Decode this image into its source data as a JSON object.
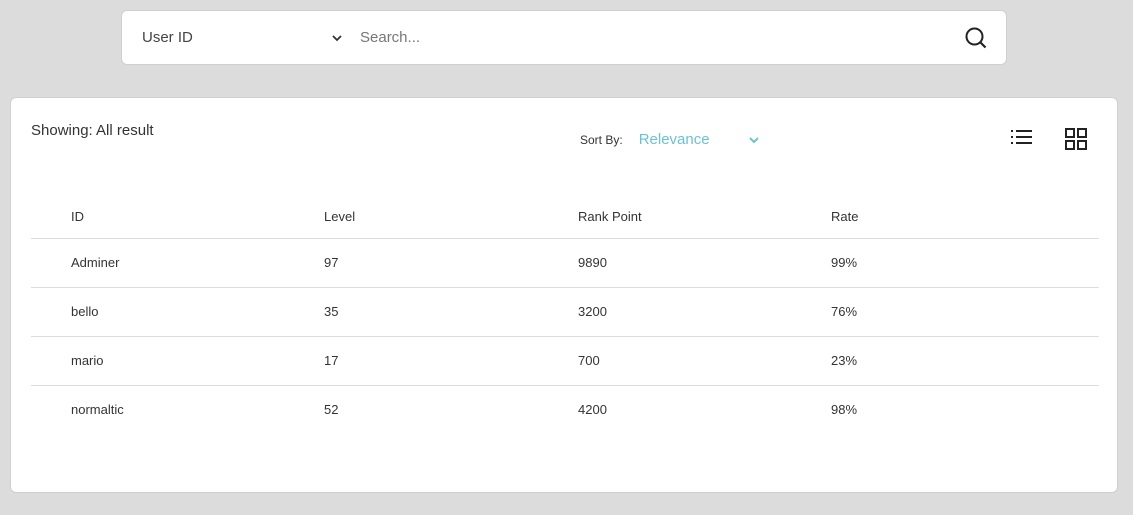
{
  "search": {
    "filter": "User ID",
    "placeholder": "Search..."
  },
  "results": {
    "showing": "Showing: All result",
    "sort_label": "Sort By:",
    "sort_value": "Relevance"
  },
  "accent": "#6cc3d0",
  "table": {
    "headers": [
      "ID",
      "Level",
      "Rank Point",
      "Rate"
    ],
    "rows": [
      [
        "Adminer",
        "97",
        "9890",
        "99%"
      ],
      [
        "bello",
        "35",
        "3200",
        "76%"
      ],
      [
        "mario",
        "17",
        "700",
        "23%"
      ],
      [
        "normaltic",
        "52",
        "4200",
        "98%"
      ]
    ]
  }
}
